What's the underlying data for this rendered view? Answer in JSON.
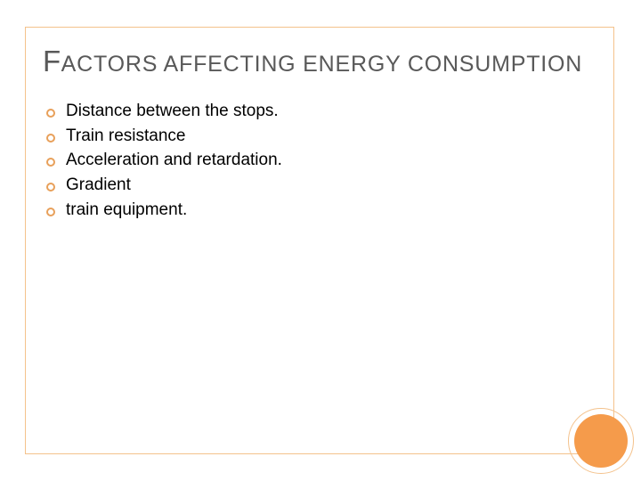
{
  "colors": {
    "frame_border": "#f4c28c",
    "title_text": "#595959",
    "body_text": "#000000",
    "bullet_ring": "#e8a05a",
    "corner_fill": "#f59b4b",
    "background": "#ffffff"
  },
  "title": {
    "cap": "F",
    "rest": "ACTORS AFFECTING ENERGY CONSUMPTION",
    "cap_fontsize": 33,
    "rest_fontsize": 25
  },
  "bullets": {
    "items": [
      {
        "text": "Distance between the stops."
      },
      {
        "text": "Train resistance"
      },
      {
        "text": "Acceleration and retardation."
      },
      {
        "text": "Gradient"
      },
      {
        "text": " train equipment."
      }
    ],
    "fontsize": 19,
    "bullet_style": "hollow-circle"
  },
  "decoration": {
    "outer_circle_diameter": 74,
    "inner_circle_diameter": 60
  }
}
